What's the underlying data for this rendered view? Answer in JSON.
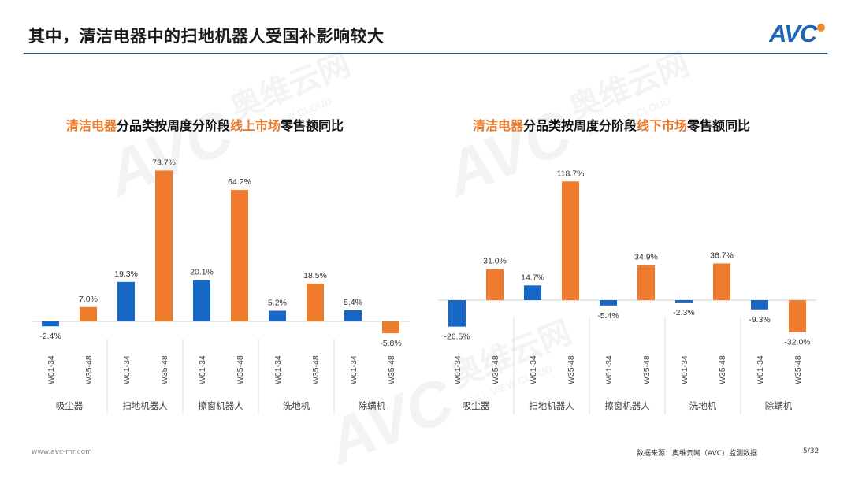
{
  "page": {
    "title": "其中，清洁电器中的扫地机器人受国补影响较大",
    "logo_text": "AVC",
    "website": "www.avc-mr.com",
    "source": "数据来源：奥维云网（AVC）监测数据",
    "page_number": "5/32"
  },
  "watermark": {
    "brand": "AVC",
    "name": "奥维云网",
    "sub": "ALL VIEW CLOUD"
  },
  "colors": {
    "w01": "#1667c8",
    "w35": "#ef7b2f",
    "accent": "#ea7a2a",
    "rule": "#1e5aa8",
    "logo_blue": "#1f64b5",
    "logo_orange": "#f08a2a"
  },
  "chart_data": [
    {
      "type": "bar",
      "title_parts": [
        "清洁电器",
        "分品类按周度分阶段",
        "线上市场",
        "零售额同比"
      ],
      "categories": [
        "吸尘器",
        "扫地机器人",
        "擦窗机器人",
        "洗地机",
        "除螨机"
      ],
      "sub_categories": [
        "W01-34",
        "W35-48"
      ],
      "series": [
        {
          "name": "W01-34",
          "values": [
            -2.4,
            19.3,
            20.1,
            5.2,
            5.4
          ]
        },
        {
          "name": "W35-48",
          "values": [
            7.0,
            73.7,
            64.2,
            18.5,
            -5.8
          ]
        }
      ],
      "unit": "%",
      "ylim": [
        -10,
        80
      ]
    },
    {
      "type": "bar",
      "title_parts": [
        "清洁电器",
        "分品类按周度分阶段",
        "线下市场",
        "零售额同比"
      ],
      "categories": [
        "吸尘器",
        "扫地机器人",
        "擦窗机器人",
        "洗地机",
        "除螨机"
      ],
      "sub_categories": [
        "W01-34",
        "W35-48"
      ],
      "series": [
        {
          "name": "W01-34",
          "values": [
            -26.5,
            14.7,
            -5.4,
            -2.3,
            -9.3
          ]
        },
        {
          "name": "W35-48",
          "values": [
            31.0,
            118.7,
            34.9,
            36.7,
            -32.0
          ]
        }
      ],
      "unit": "%",
      "ylim": [
        -35,
        125
      ]
    }
  ]
}
